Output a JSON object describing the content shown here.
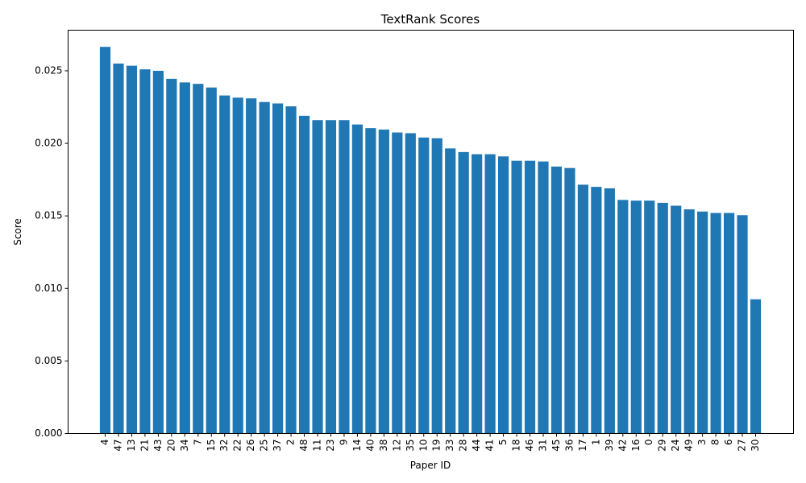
{
  "chart_data": {
    "type": "bar",
    "title": "TextRank Scores",
    "xlabel": "Paper ID",
    "ylabel": "Score",
    "ylim": [
      0,
      0.0278
    ],
    "yticks": [
      "0.000",
      "0.005",
      "0.010",
      "0.015",
      "0.020",
      "0.025"
    ],
    "ytick_values": [
      0,
      0.005,
      0.01,
      0.015,
      0.02,
      0.025
    ],
    "bar_color": "#1f77b4",
    "grid": false,
    "categories": [
      "4",
      "47",
      "13",
      "21",
      "43",
      "20",
      "34",
      "7",
      "15",
      "32",
      "22",
      "26",
      "25",
      "37",
      "2",
      "48",
      "11",
      "23",
      "9",
      "14",
      "40",
      "38",
      "12",
      "35",
      "10",
      "19",
      "33",
      "28",
      "44",
      "41",
      "5",
      "18",
      "46",
      "31",
      "45",
      "36",
      "17",
      "1",
      "39",
      "42",
      "16",
      "0",
      "29",
      "24",
      "49",
      "3",
      "8",
      "6",
      "27",
      "30"
    ],
    "values": [
      0.02665,
      0.0255,
      0.02535,
      0.0251,
      0.025,
      0.02445,
      0.0242,
      0.0241,
      0.02385,
      0.0233,
      0.02315,
      0.0231,
      0.02285,
      0.02275,
      0.02255,
      0.0219,
      0.0216,
      0.0216,
      0.0216,
      0.0213,
      0.02105,
      0.02095,
      0.02075,
      0.0207,
      0.0204,
      0.02035,
      0.01965,
      0.0194,
      0.01925,
      0.01925,
      0.0191,
      0.0188,
      0.0188,
      0.01875,
      0.0184,
      0.0183,
      0.01715,
      0.017,
      0.0169,
      0.0161,
      0.01605,
      0.01605,
      0.0159,
      0.0157,
      0.01545,
      0.0153,
      0.0152,
      0.0152,
      0.01505,
      0.00925
    ]
  }
}
